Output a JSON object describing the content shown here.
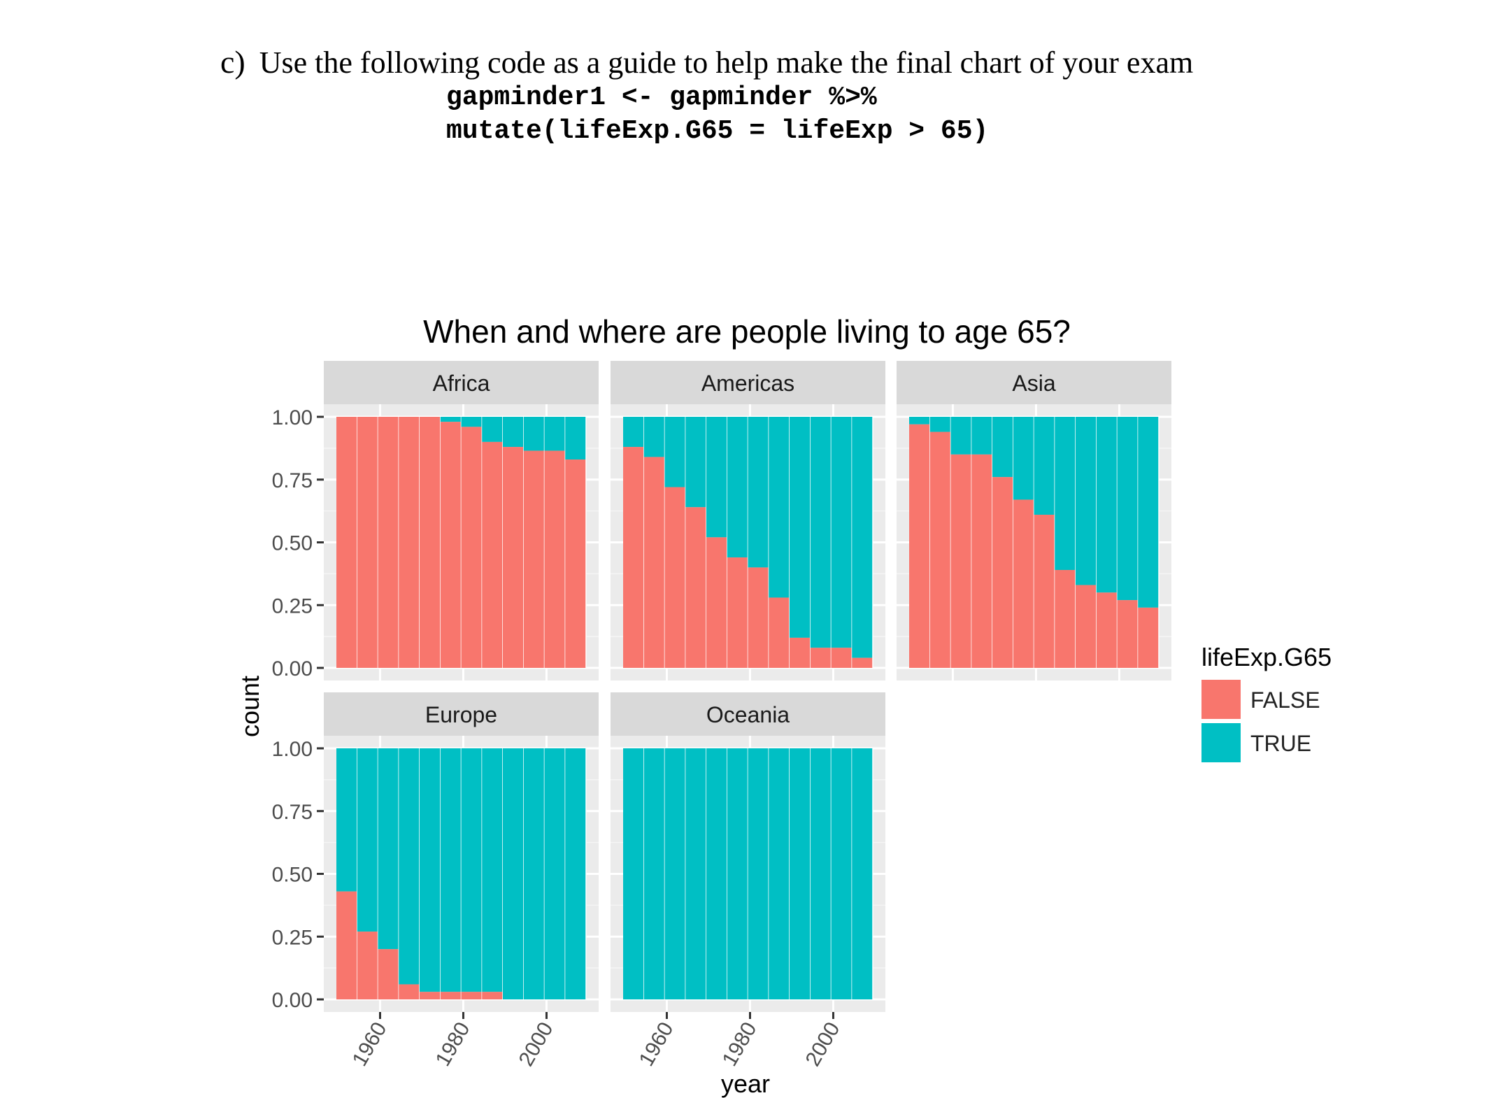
{
  "question": {
    "label": "c)",
    "text": "Use the following code as a guide to help make the final chart of your exam",
    "code_lines": [
      "gapminder1 <- gapminder %>%",
      "mutate(lifeExp.G65 = lifeExp > 65)"
    ]
  },
  "colors": {
    "false": "#F8766D",
    "true": "#00BFC4",
    "panel_bg": "#EBEBEB",
    "strip_bg": "#D9D9D9"
  },
  "chart_data": {
    "type": "bar",
    "stacked": "fill",
    "title": "When and where are people living to age 65?",
    "xlabel": "year",
    "ylabel": "count",
    "x": [
      1952,
      1957,
      1962,
      1967,
      1972,
      1977,
      1982,
      1987,
      1992,
      1997,
      2002,
      2007
    ],
    "xticks": [
      1960,
      1980,
      2000
    ],
    "yticks": [
      "0.00",
      "0.25",
      "0.50",
      "0.75",
      "1.00"
    ],
    "ylim": [
      0,
      1
    ],
    "legend": {
      "title": "lifeExp.G65",
      "entries": [
        "FALSE",
        "TRUE"
      ],
      "position": "right"
    },
    "facets": [
      {
        "name": "Africa",
        "false_share": [
          1.0,
          1.0,
          1.0,
          1.0,
          1.0,
          0.98,
          0.96,
          0.9,
          0.88,
          0.865,
          0.865,
          0.83
        ]
      },
      {
        "name": "Americas",
        "false_share": [
          0.88,
          0.84,
          0.72,
          0.64,
          0.52,
          0.44,
          0.4,
          0.28,
          0.12,
          0.08,
          0.08,
          0.04
        ]
      },
      {
        "name": "Asia",
        "false_share": [
          0.97,
          0.94,
          0.85,
          0.85,
          0.76,
          0.67,
          0.61,
          0.39,
          0.33,
          0.3,
          0.27,
          0.24
        ]
      },
      {
        "name": "Europe",
        "false_share": [
          0.43,
          0.27,
          0.2,
          0.06,
          0.03,
          0.03,
          0.03,
          0.03,
          0.0,
          0.0,
          0.0,
          0.0
        ]
      },
      {
        "name": "Oceania",
        "false_share": [
          0,
          0,
          0,
          0,
          0,
          0,
          0,
          0,
          0,
          0,
          0,
          0
        ]
      }
    ]
  }
}
